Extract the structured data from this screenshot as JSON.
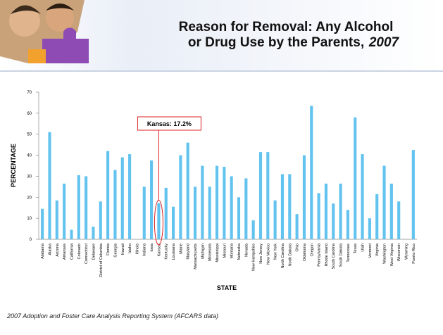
{
  "chart_data": {
    "type": "bar",
    "title_line1": "Reason for Removal: Any Alcohol",
    "title_line2": "or Drug Use by the Parents,",
    "title_year": "2007",
    "y_label": "PERCENTAGE",
    "x_label": "STATE",
    "annotation": "Kansas: 17.2%",
    "annotation_index": 16,
    "source": "2007 Adoption and Foster Care Analysis Reporting System (AFCARS data)",
    "color": "#63c3ef",
    "ylim": [
      0,
      70
    ],
    "yticks": [
      0,
      10,
      20,
      30,
      40,
      50,
      60,
      70
    ],
    "categories": [
      "Alabama",
      "Alaska",
      "Arizona",
      "Arkansas",
      "California",
      "Colorado",
      "Connecticut",
      "Delaware",
      "District of Columbia",
      "Florida",
      "Georgia",
      "Hawaii",
      "Idaho",
      "Illinois",
      "Indiana",
      "Iowa",
      "Kansas",
      "Kentucky",
      "Louisiana",
      "Maine",
      "Maryland",
      "Massachusetts",
      "Michigan",
      "Minnesota",
      "Mississippi",
      "Missouri",
      "Montana",
      "Nebraska",
      "Nevada",
      "New Hampshire",
      "New Jersey",
      "New Mexico",
      "New York",
      "North Carolina",
      "North Dakota",
      "Ohio",
      "Oklahoma",
      "Oregon",
      "Pennsylvania",
      "Rhode Island",
      "South Carolina",
      "South Dakota",
      "Tennessee",
      "Texas",
      "Utah",
      "Vermont",
      "Virginia",
      "Washington",
      "West Virginia",
      "Wisconsin",
      "Wyoming",
      "Puerto Rico"
    ],
    "values": [
      14.5,
      51,
      18.5,
      26.5,
      4.5,
      30.5,
      30,
      6,
      18,
      42,
      33,
      39,
      40.5,
      null,
      25,
      37.5,
      17.2,
      24.5,
      15.5,
      40,
      46,
      25,
      35,
      25,
      35,
      34.5,
      30,
      20,
      29,
      9,
      41.5,
      41.5,
      18.5,
      31,
      31,
      12,
      40,
      63.5,
      22,
      26.5,
      17,
      26.5,
      14,
      58,
      40.5,
      10,
      21.5,
      35,
      26.5,
      18,
      null,
      42.5
    ]
  }
}
